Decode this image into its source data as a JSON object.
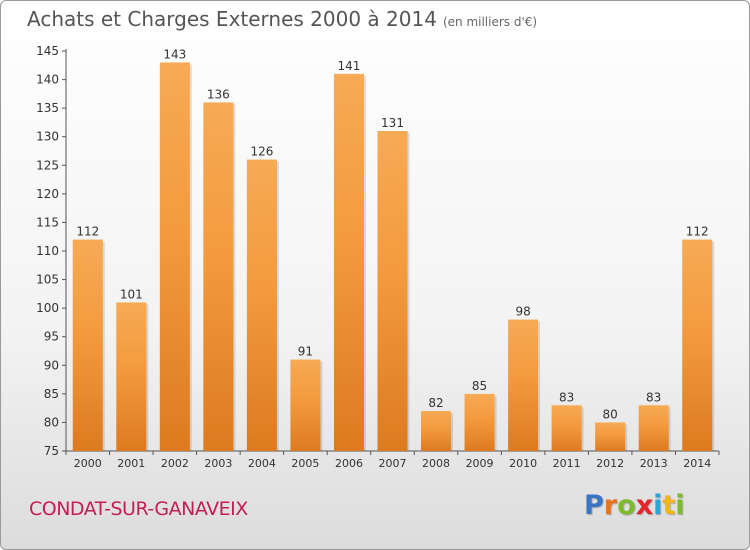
{
  "chart_data": {
    "type": "bar",
    "title": "Achats et Charges Externes 2000 à 2014",
    "subtitle": "(en milliers d'€)",
    "categories": [
      "2000",
      "2001",
      "2002",
      "2003",
      "2004",
      "2005",
      "2006",
      "2007",
      "2008",
      "2009",
      "2010",
      "2011",
      "2012",
      "2013",
      "2014"
    ],
    "values": [
      112,
      101,
      143,
      136,
      126,
      91,
      141,
      131,
      82,
      85,
      98,
      83,
      80,
      83,
      112
    ],
    "data_labels": [
      "112",
      "101",
      "143",
      "136",
      "126",
      "91",
      "141",
      "131",
      "82",
      "85",
      "98",
      "83",
      "80",
      "83",
      "112"
    ],
    "y_ticks": [
      "75",
      "80",
      "85",
      "90",
      "95",
      "100",
      "105",
      "110",
      "115",
      "120",
      "125",
      "130",
      "135",
      "140",
      "145"
    ],
    "ylim": [
      75,
      145
    ],
    "xlabel": "",
    "ylabel": "",
    "grid": false,
    "legend": "none",
    "bar_color": "#f39a3d",
    "bar_color_light": "#f7aa55",
    "bar_color_dark": "#dd7a1f"
  },
  "footer": {
    "commune": "CONDAT-SUR-GANAVEIX",
    "commune_color": "#c41e54"
  },
  "logo": {
    "text": "Proxiti",
    "letters": [
      {
        "char": "P",
        "color": "#3a74c4"
      },
      {
        "char": "r",
        "color": "#e8741e"
      },
      {
        "char": "o",
        "color": "#7cbc2c"
      },
      {
        "char": "x",
        "color": "#e2262b"
      },
      {
        "char": "i",
        "color": "#2aa4d9"
      },
      {
        "char": "t",
        "color": "#f0b51c"
      },
      {
        "char": "i",
        "color": "#7cbc2c"
      }
    ]
  }
}
